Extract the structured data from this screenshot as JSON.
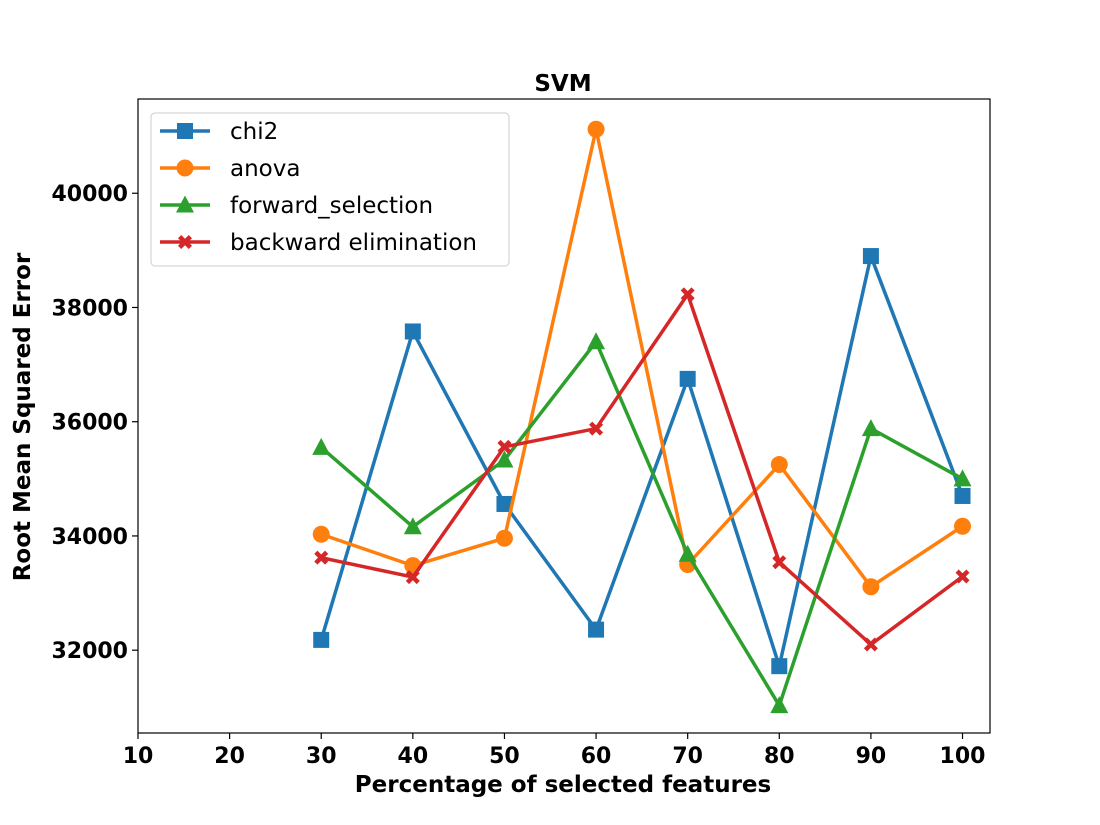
{
  "chart_data": {
    "type": "line",
    "title": "SVM",
    "xlabel": "Percentage of selected features",
    "ylabel": "Root Mean Squared Error",
    "xlim": [
      10,
      103
    ],
    "ylim": [
      30550,
      41650
    ],
    "xticks": [
      10,
      20,
      30,
      40,
      50,
      60,
      70,
      80,
      90,
      100
    ],
    "yticks": [
      32000,
      34000,
      36000,
      38000,
      40000
    ],
    "grid": false,
    "legend_position": "top-left",
    "x": [
      30,
      40,
      50,
      60,
      70,
      80,
      90,
      100
    ],
    "series": [
      {
        "name": "chi2",
        "color": "#1f77b4",
        "marker": "square",
        "values": [
          32180,
          37580,
          34560,
          32360,
          36750,
          31720,
          38900,
          34700
        ]
      },
      {
        "name": "anova",
        "color": "#ff7f0e",
        "marker": "circle",
        "values": [
          34030,
          33480,
          33960,
          41120,
          33500,
          35250,
          33110,
          34170
        ]
      },
      {
        "name": "forward_selection",
        "color": "#2ca02c",
        "marker": "triangle",
        "values": [
          35550,
          34160,
          35330,
          37400,
          33680,
          31030,
          35880,
          35000
        ]
      },
      {
        "name": "backward elimination",
        "color": "#d62728",
        "marker": "x",
        "values": [
          33620,
          33280,
          35560,
          35880,
          38230,
          33540,
          32100,
          33290
        ]
      }
    ]
  }
}
